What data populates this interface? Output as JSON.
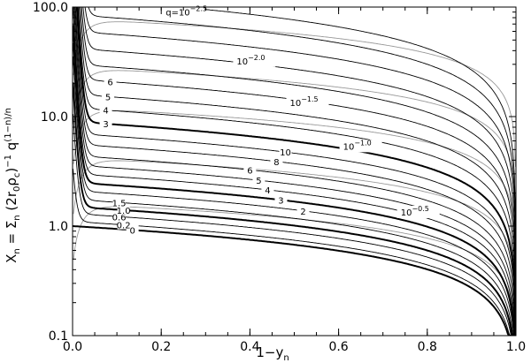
{
  "chart_data": {
    "type": "line",
    "xlabel": "1−y",
    "xlabel_sub": "n",
    "ylabel": "X = Σ (2r₀ρ_c)⁻¹ q^((1−n)/n)",
    "ylabel_parts": {
      "X": "X",
      "X_sub": "n",
      "eq": " = Σ",
      "S_sub": "n",
      "paren": " (2r",
      "r_sub": "0",
      "rho": "ρ",
      "rho_sub": "c",
      "close": ")",
      "inv_sup": "−1",
      "q": " q",
      "q_sup": "(1−n)/n"
    },
    "xlim": [
      0.0,
      1.0
    ],
    "ylim": [
      0.1,
      100.0
    ],
    "yscale": "log",
    "x_ticks": [
      "0.0",
      "0.2",
      "0.4",
      "0.6",
      "0.8",
      "1.0"
    ],
    "x_tick_values": [
      0.0,
      0.2,
      0.4,
      0.6,
      0.8,
      1.0
    ],
    "y_ticks": [
      "0.1",
      "1.0",
      "10.0",
      "100.0"
    ],
    "y_tick_values": [
      0.1,
      1.0,
      10.0,
      100.0
    ],
    "legend": "none",
    "grid": false,
    "n_curves": [
      {
        "label": "0",
        "x0": 1.0,
        "y0": 0.0,
        "x_label": 0.135,
        "bold": true
      },
      {
        "label": "0.2",
        "x0": 1.1,
        "y0": 0.04,
        "x_label": 0.115,
        "bold": false
      },
      {
        "label": "0.6",
        "x0": 1.3,
        "y0": 0.14,
        "x_label": 0.105,
        "bold": false
      },
      {
        "label": "1.0",
        "x0": 1.5,
        "y0": 0.25,
        "x_label": 0.115,
        "bold": true
      },
      {
        "label": "1.5",
        "x0": 1.75,
        "y0": 0.38,
        "x_label": 0.105,
        "bold": false
      },
      {
        "label": "2",
        "x0": 2.1,
        "y0": 0.42,
        "x_label": 0.52,
        "bold": false
      },
      {
        "label": "3",
        "x0": 2.5,
        "y0": 0.52,
        "x_label": 0.47,
        "bold": true
      },
      {
        "label": "4",
        "x0": 3.0,
        "y0": 0.63,
        "x_label": 0.44,
        "bold": false
      },
      {
        "label": "5",
        "x0": 3.6,
        "y0": 0.73,
        "x_label": 0.42,
        "bold": false
      },
      {
        "label": "6",
        "x0": 4.4,
        "y0": 0.8,
        "x_label": 0.4,
        "bold": false
      },
      {
        "label": "8",
        "x0": 5.6,
        "y0": 0.82,
        "x_label": 0.46,
        "bold": false
      },
      {
        "label": "10",
        "x0": 7.0,
        "y0": 0.9,
        "x_label": 0.48,
        "bold": false
      },
      {
        "label": "3",
        "x0": 9.0,
        "y0": 0.95,
        "x_label": 0.075,
        "bold": true
      },
      {
        "label": "4",
        "x0": 12.0,
        "y0": 1.0,
        "x_label": 0.075,
        "bold": false
      },
      {
        "label": "5",
        "x0": 16.0,
        "y0": 1.05,
        "x_label": 0.08,
        "bold": false
      },
      {
        "label": "6",
        "x0": 22.0,
        "y0": 1.1,
        "x_label": 0.085,
        "bold": false
      },
      {
        "label": "",
        "x0": 30.0,
        "y0": 1.15,
        "x_label": 0.0,
        "bold": false
      },
      {
        "label": "",
        "x0": 42.0,
        "y0": 1.2,
        "x_label": 0.0,
        "bold": false
      },
      {
        "label": "",
        "x0": 60.0,
        "y0": 1.25,
        "x_label": 0.0,
        "bold": false
      },
      {
        "label": "",
        "x0": 85.0,
        "y0": 1.3,
        "x_label": 0.0,
        "bold": false
      },
      {
        "label": "",
        "x0": 120.0,
        "y0": 1.35,
        "x_label": 0.0,
        "bold": false
      }
    ],
    "q_curves": [
      {
        "label": "q=10",
        "label_sup": "−2.5",
        "plateau": 78,
        "x_label": 0.21,
        "y_label": 84
      },
      {
        "label": "10",
        "label_sup": "−2.0",
        "plateau": 28,
        "x_label": 0.37,
        "y_label": 30
      },
      {
        "label": "10",
        "label_sup": "−1.5",
        "plateau": 12,
        "x_label": 0.49,
        "y_label": 12.5
      },
      {
        "label": "10",
        "label_sup": "−1.0",
        "plateau": 4.2,
        "x_label": 0.61,
        "y_label": 5.0
      },
      {
        "label": "10",
        "label_sup": "−0.5",
        "plateau": 1.6,
        "x_label": 0.74,
        "y_label": 1.25
      }
    ]
  }
}
